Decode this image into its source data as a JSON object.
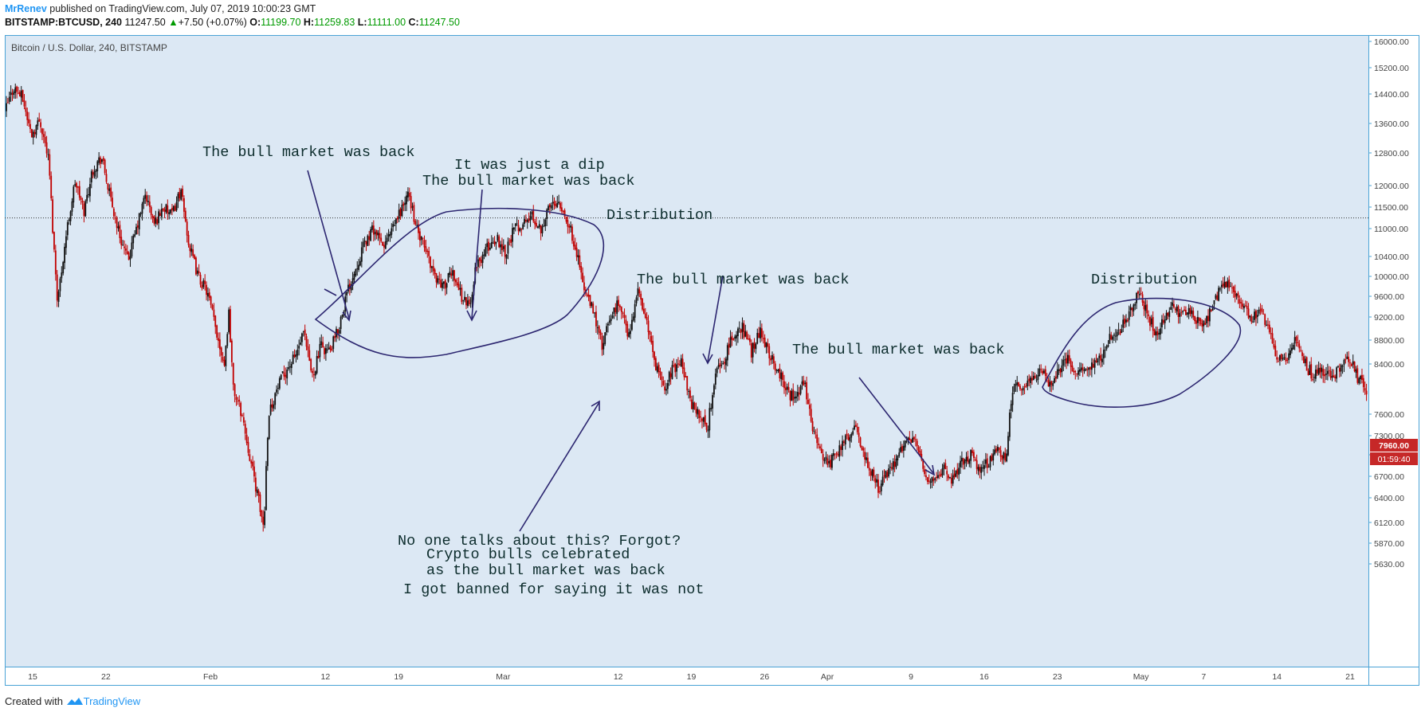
{
  "header": {
    "author": "MrRenev",
    "published_text": " published on TradingView.com, July 07, 2019 10:00:23 GMT",
    "symbol": "BITSTAMP:BTCUSD, 240",
    "last": "11247.50",
    "change_arrow": "▲",
    "change": "+7.50 (+0.07%)",
    "o_label": "O:",
    "o_value": "11199.70",
    "h_label": "H:",
    "h_value": "11259.83",
    "l_label": "L:",
    "l_value": "11111.00",
    "c_label": "C:",
    "c_value": "11247.50"
  },
  "footer": {
    "created_with": "Created with",
    "brand": "TradingView",
    "brand_icon": "tradingview-logo-icon"
  },
  "colors": {
    "background": "#dce8f4",
    "frame": "#4aa3d6",
    "bull_candle": "#111111",
    "bear_candle": "#c00000",
    "annotation_text": "#0c2c2c",
    "annotation_shape": "#2c2670",
    "price_badge": "#c62828"
  },
  "chart_data": {
    "type": "candlestick",
    "title": "Bitcoin / U.S. Dollar, 240, BITSTAMP",
    "xlabel": "",
    "ylabel": "",
    "grid": false,
    "y_axis_position": "right",
    "ylim": [
      5400,
      16300
    ],
    "y_ticks": [
      {
        "label": "16000.00",
        "value": 16000
      },
      {
        "label": "15200.00",
        "value": 15200
      },
      {
        "label": "14400.00",
        "value": 14400
      },
      {
        "label": "13600.00",
        "value": 13600
      },
      {
        "label": "12800.00",
        "value": 12800
      },
      {
        "label": "12000.00",
        "value": 12000
      },
      {
        "label": "11500.00",
        "value": 11500
      },
      {
        "label": "11000.00",
        "value": 11000
      },
      {
        "label": "10400.00",
        "value": 10400
      },
      {
        "label": "10000.00",
        "value": 10000
      },
      {
        "label": "9600.00",
        "value": 9600
      },
      {
        "label": "9200.00",
        "value": 9200
      },
      {
        "label": "8800.00",
        "value": 8800
      },
      {
        "label": "8400.00",
        "value": 8400
      },
      {
        "label": "7600.00",
        "value": 7600
      },
      {
        "label": "7300.00",
        "value": 7300
      },
      {
        "label": "7000.00",
        "value": 7000
      },
      {
        "label": "6700.00",
        "value": 6700
      },
      {
        "label": "6400.00",
        "value": 6400
      },
      {
        "label": "6120.00",
        "value": 6120
      },
      {
        "label": "5870.00",
        "value": 5870
      },
      {
        "label": "5630.00",
        "value": 5630
      }
    ],
    "x_ticks": [
      {
        "label": "15",
        "day": 15
      },
      {
        "label": "22",
        "day": 22
      },
      {
        "label": "Feb",
        "day": 32
      },
      {
        "label": "12",
        "day": 43
      },
      {
        "label": "19",
        "day": 50
      },
      {
        "label": "Mar",
        "day": 60
      },
      {
        "label": "12",
        "day": 71
      },
      {
        "label": "19",
        "day": 78
      },
      {
        "label": "26",
        "day": 85
      },
      {
        "label": "Apr",
        "day": 91
      },
      {
        "label": "9",
        "day": 99
      },
      {
        "label": "16",
        "day": 106
      },
      {
        "label": "23",
        "day": 113
      },
      {
        "label": "May",
        "day": 121
      },
      {
        "label": "7",
        "day": 127
      },
      {
        "label": "14",
        "day": 134
      },
      {
        "label": "21",
        "day": 141
      }
    ],
    "last_price": {
      "label": "7960.00",
      "value": 7960,
      "countdown": "01:59:40"
    },
    "reference_line": {
      "value": 11247.5
    },
    "candle_outline": [
      [
        12.5,
        13900
      ],
      [
        13.5,
        14600
      ],
      [
        14.5,
        14300
      ],
      [
        15.5,
        13300
      ],
      [
        16.5,
        13700
      ],
      [
        17.5,
        12600
      ],
      [
        18,
        10800
      ],
      [
        18.5,
        9500
      ],
      [
        19.5,
        10900
      ],
      [
        20.5,
        12100
      ],
      [
        21.5,
        11400
      ],
      [
        22.5,
        12400
      ],
      [
        23.5,
        12700
      ],
      [
        24.5,
        11700
      ],
      [
        25.5,
        10900
      ],
      [
        26.5,
        10300
      ],
      [
        27.5,
        11000
      ],
      [
        28.5,
        11800
      ],
      [
        29.5,
        11100
      ],
      [
        30.5,
        11500
      ],
      [
        31.5,
        11300
      ],
      [
        32.5,
        11900
      ],
      [
        33.5,
        10600
      ],
      [
        34.5,
        10000
      ],
      [
        35.5,
        9700
      ],
      [
        36.5,
        9000
      ],
      [
        37.5,
        8400
      ],
      [
        38,
        9300
      ],
      [
        38.5,
        8000
      ],
      [
        39.5,
        7600
      ],
      [
        40.5,
        6900
      ],
      [
        41.5,
        6300
      ],
      [
        42,
        6050
      ],
      [
        42.5,
        7600
      ],
      [
        43.5,
        8000
      ],
      [
        44.5,
        8300
      ],
      [
        45.5,
        8500
      ],
      [
        46.5,
        8900
      ],
      [
        47.5,
        8200
      ],
      [
        48.5,
        8700
      ],
      [
        49.5,
        8600
      ],
      [
        50.5,
        9000
      ],
      [
        51.5,
        9700
      ],
      [
        52.5,
        10200
      ],
      [
        53.5,
        10700
      ],
      [
        54.5,
        11000
      ],
      [
        55.5,
        10600
      ],
      [
        56.5,
        10900
      ],
      [
        57.5,
        11400
      ],
      [
        58.5,
        11800
      ],
      [
        59.5,
        10900
      ],
      [
        60.5,
        10500
      ],
      [
        61.5,
        10000
      ],
      [
        62.5,
        9800
      ],
      [
        63.5,
        10100
      ],
      [
        64.5,
        9600
      ],
      [
        65.5,
        9400
      ],
      [
        66,
        10100
      ],
      [
        66.5,
        10300
      ],
      [
        67.5,
        10600
      ],
      [
        68.5,
        10800
      ],
      [
        69.5,
        10500
      ],
      [
        70.5,
        11000
      ],
      [
        71.5,
        11100
      ],
      [
        72.5,
        11300
      ],
      [
        73.5,
        11000
      ],
      [
        74.5,
        11500
      ],
      [
        75.5,
        11700
      ],
      [
        76.5,
        11200
      ],
      [
        77.5,
        10600
      ],
      [
        78.5,
        9700
      ],
      [
        79.5,
        9300
      ],
      [
        80.5,
        8700
      ],
      [
        81.5,
        9200
      ],
      [
        82.5,
        9500
      ],
      [
        83.5,
        8800
      ],
      [
        84.5,
        9700
      ],
      [
        85.5,
        9200
      ],
      [
        86.5,
        8400
      ],
      [
        87.5,
        8000
      ],
      [
        88.5,
        8300
      ],
      [
        89.5,
        8500
      ],
      [
        90.5,
        7800
      ],
      [
        91.5,
        7600
      ],
      [
        92.5,
        7400
      ],
      [
        93.5,
        8300
      ],
      [
        94.5,
        8500
      ],
      [
        95.5,
        8900
      ],
      [
        96.5,
        9000
      ],
      [
        97.5,
        8600
      ],
      [
        98.5,
        9000
      ],
      [
        99.5,
        8600
      ],
      [
        100.5,
        8300
      ],
      [
        101.5,
        8000
      ],
      [
        102.5,
        7800
      ],
      [
        103.5,
        8100
      ],
      [
        104.5,
        7400
      ],
      [
        105.5,
        7000
      ],
      [
        106.5,
        6900
      ],
      [
        107.5,
        7100
      ],
      [
        108.5,
        7300
      ],
      [
        109.5,
        7400
      ],
      [
        110.5,
        6900
      ],
      [
        111.5,
        6700
      ],
      [
        112,
        6500
      ],
      [
        112.5,
        6700
      ],
      [
        113.5,
        6800
      ],
      [
        114.5,
        7100
      ],
      [
        115.5,
        7300
      ],
      [
        116.5,
        7100
      ],
      [
        117.5,
        6600
      ],
      [
        118.5,
        6700
      ],
      [
        119.5,
        6800
      ],
      [
        120,
        6600
      ],
      [
        120.5,
        6700
      ],
      [
        121.5,
        6900
      ],
      [
        122.5,
        7000
      ],
      [
        123.5,
        6800
      ],
      [
        124.5,
        6900
      ],
      [
        125.5,
        7100
      ],
      [
        126.5,
        6900
      ],
      [
        127,
        7700
      ],
      [
        127.5,
        8000
      ],
      [
        128.5,
        8100
      ],
      [
        129.5,
        8200
      ],
      [
        130.5,
        8300
      ],
      [
        131.5,
        8100
      ],
      [
        132.5,
        8300
      ],
      [
        133.5,
        8500
      ],
      [
        134.5,
        8200
      ],
      [
        135.5,
        8300
      ],
      [
        136.5,
        8400
      ],
      [
        137.5,
        8600
      ],
      [
        138.5,
        8900
      ],
      [
        139.5,
        9000
      ],
      [
        140.5,
        9200
      ],
      [
        141.5,
        9700
      ],
      [
        142.5,
        9300
      ],
      [
        143.5,
        8900
      ],
      [
        144.5,
        9200
      ],
      [
        145.5,
        9400
      ],
      [
        146.5,
        9200
      ],
      [
        147.5,
        9300
      ],
      [
        148.5,
        9100
      ],
      [
        149.5,
        9200
      ],
      [
        150.5,
        9600
      ],
      [
        151.5,
        9900
      ],
      [
        152.5,
        9700
      ],
      [
        153.5,
        9400
      ],
      [
        154.5,
        9200
      ],
      [
        155.5,
        9300
      ],
      [
        156.5,
        8900
      ],
      [
        157.5,
        8500
      ],
      [
        158.5,
        8400
      ],
      [
        159.5,
        8800
      ],
      [
        160.5,
        8400
      ],
      [
        161.5,
        8200
      ],
      [
        162.5,
        8300
      ],
      [
        163.5,
        8200
      ],
      [
        164.5,
        8300
      ],
      [
        165.5,
        8500
      ],
      [
        166.5,
        8200
      ],
      [
        167.5,
        7960
      ]
    ],
    "annotations": {
      "texts": [
        {
          "id": "t1",
          "text": "The bull market was back"
        },
        {
          "id": "t2",
          "text": "It was just a dip"
        },
        {
          "id": "t3",
          "text": "The bull market was back"
        },
        {
          "id": "t4",
          "text": "Distribution"
        },
        {
          "id": "t5",
          "text": "The bull market was back"
        },
        {
          "id": "t6",
          "text": "The bull market was back"
        },
        {
          "id": "t7",
          "text": "Distribution"
        },
        {
          "id": "t8",
          "text": "No one talks about this? Forgot?"
        },
        {
          "id": "t9",
          "text": "Crypto bulls celebrated"
        },
        {
          "id": "t10",
          "text": "as the bull market was back"
        },
        {
          "id": "t11",
          "text": "I got banned for saying it was not"
        }
      ]
    }
  }
}
